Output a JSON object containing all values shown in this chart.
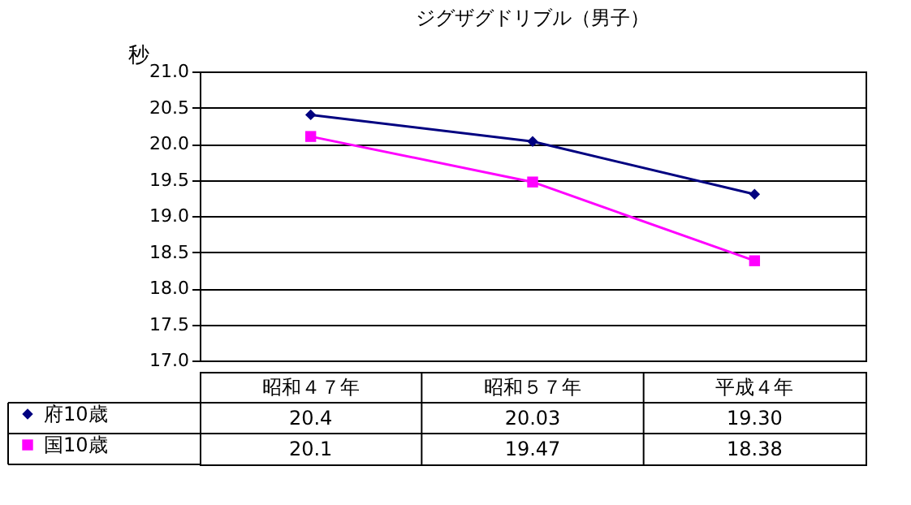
{
  "chart_data": {
    "type": "line",
    "title": "ジグザグドリブル（男子）",
    "ylabel": "秒",
    "categories": [
      "昭和４７年",
      "昭和５７年",
      "平成４年"
    ],
    "series": [
      {
        "name": "府10歳",
        "color": "#000080",
        "marker": "diamond",
        "values": [
          20.4,
          20.03,
          19.3
        ],
        "value_labels": [
          "20.4",
          "20.03",
          "19.30"
        ]
      },
      {
        "name": "国10歳",
        "color": "#ff00ff",
        "marker": "square",
        "values": [
          20.1,
          19.47,
          18.38
        ],
        "value_labels": [
          "20.1",
          "19.47",
          "18.38"
        ]
      }
    ],
    "ylim": [
      17,
      21
    ],
    "yticks": [
      {
        "value": 17,
        "label": "17.0"
      },
      {
        "value": 17.5,
        "label": "17.5"
      },
      {
        "value": 18,
        "label": "18.0"
      },
      {
        "value": 18.5,
        "label": "18.5"
      },
      {
        "value": 19,
        "label": "19.0"
      },
      {
        "value": 19.5,
        "label": "19.5"
      },
      {
        "value": 20,
        "label": "20.0"
      },
      {
        "value": 20.5,
        "label": "20.5"
      },
      {
        "value": 21,
        "label": "21.0"
      }
    ],
    "grid": "y",
    "legend": "bottom",
    "line_style": "solid"
  }
}
